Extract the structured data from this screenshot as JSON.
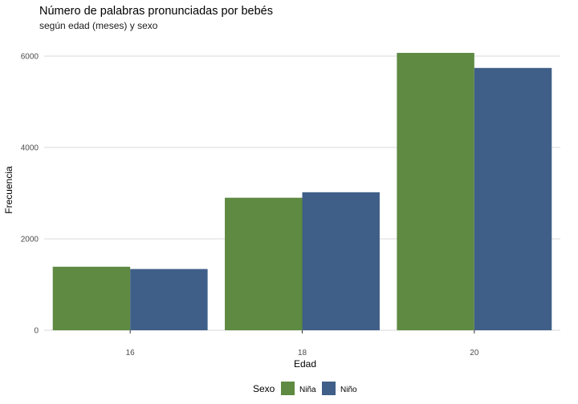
{
  "chart_data": {
    "type": "bar",
    "title": "Número de palabras pronunciadas por bebés",
    "subtitle": "según edad (meses) y sexo",
    "xlabel": "Edad",
    "ylabel": "Frecuencia",
    "categories": [
      "16",
      "18",
      "20"
    ],
    "series": [
      {
        "name": "Niña",
        "color": "#5e8a41",
        "values": [
          1390,
          2900,
          6070
        ]
      },
      {
        "name": "Niño",
        "color": "#3f5f88",
        "values": [
          1340,
          3020,
          5740
        ]
      }
    ],
    "ylim": [
      0,
      6350
    ],
    "yticks": [
      "0",
      "2000",
      "4000",
      "6000"
    ],
    "grid": "horizontal",
    "legend": {
      "title": "Sexo",
      "position": "bottom"
    }
  }
}
